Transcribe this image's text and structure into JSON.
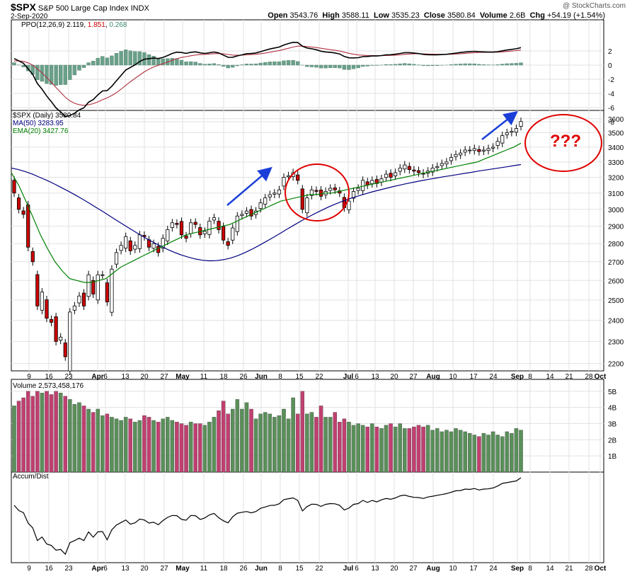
{
  "header": {
    "symbol": "$SPX",
    "name": "S&P 500 Large Cap Index",
    "exchange": "INDX",
    "date": "2-Sep-2020",
    "open_label": "Open",
    "open": "3543.76",
    "high_label": "High",
    "high": "3588.11",
    "low_label": "Low",
    "low": "3535.23",
    "close_label": "Close",
    "close": "3580.84",
    "volume_label": "Volume",
    "volume": "2.6B",
    "chg_label": "Chg",
    "chg": "+54.19 (+1.54%)",
    "credit": "@ StockCharts.com"
  },
  "ppo_legend": {
    "name": "PPO(12,26,9)",
    "v1": "2.119",
    "v2": "1.851",
    "v3": "0.268"
  },
  "price_legend": {
    "name": "$SPX (Daily) 3580.84",
    "ma": "MA(50) 3283.95",
    "ema": "EMA(20) 3427.76"
  },
  "volume_legend": {
    "name": "Volume 2,573,458,176"
  },
  "ad_legend": {
    "name": "Accum/Dist"
  },
  "annotation": {
    "question": "???"
  },
  "colors": {
    "up": "#3f7f3f",
    "down": "#cc0000",
    "ma50": "#000080",
    "ema20": "#008000",
    "annot": "#e00000",
    "arrow": "#1a3fd8",
    "vol_up": "#5a8f5a",
    "vol_down": "#c04070"
  },
  "chart_data": {
    "type": "candlestick",
    "x_ticks": [
      "9",
      "16",
      "23",
      "Apr",
      "6",
      "13",
      "20",
      "27",
      "May",
      "11",
      "18",
      "26",
      "Jun",
      "8",
      "15",
      "22",
      "Jul",
      "6",
      "13",
      "20",
      "27",
      "Aug",
      "10",
      "17",
      "24",
      "Sep",
      "8",
      "14",
      "21",
      "28",
      "Oct"
    ],
    "price_y_ticks": [
      2200,
      2300,
      2400,
      2500,
      2600,
      2700,
      2800,
      2900,
      3000,
      3100,
      3200,
      3300,
      3400,
      3500,
      3600
    ],
    "price_scale": "log",
    "ppo_y_ticks": [
      2,
      0,
      -2,
      -4,
      -6,
      -8
    ],
    "volume_y_ticks": [
      "5B",
      "4B",
      "3B",
      "2B",
      "1B"
    ],
    "closes": [
      3100,
      3000,
      2970,
      2780,
      2700,
      2470,
      2540,
      2410,
      2390,
      2300,
      2320,
      2230,
      2440,
      2470,
      2520,
      2470,
      2630,
      2530,
      2630,
      2630,
      2490,
      2660,
      2750,
      2790,
      2840,
      2760,
      2790,
      2850,
      2840,
      2780,
      2800,
      2750,
      2830,
      2880,
      2920,
      2910,
      2850,
      2830,
      2920,
      2910,
      2850,
      2870,
      2930,
      2950,
      2880,
      2820,
      2790,
      2890,
      2960,
      2970,
      2990,
      2960,
      2990,
      3040,
      3070,
      3090,
      3100,
      3120,
      3200,
      3210,
      3230,
      3180,
      3000,
      3070,
      3120,
      3110,
      3080,
      3110,
      3130,
      3120,
      3100,
      3010,
      3050,
      3110,
      3130,
      3180,
      3150,
      3180,
      3160,
      3190,
      3220,
      3200,
      3230,
      3260,
      3280,
      3250,
      3240,
      3230,
      3220,
      3240,
      3260,
      3270,
      3290,
      3300,
      3330,
      3350,
      3360,
      3380,
      3380,
      3390,
      3370,
      3380,
      3390,
      3400,
      3440,
      3480,
      3500,
      3510,
      3530,
      3580
    ],
    "ma50": [
      3260,
      3250,
      3236,
      3220,
      3200,
      3181,
      3159,
      3136,
      3113,
      3089,
      3064,
      3038,
      3011,
      2985,
      2958,
      2931,
      2905,
      2880,
      2855,
      2831,
      2809,
      2788,
      2769,
      2752,
      2737,
      2725,
      2715,
      2708,
      2705,
      2706,
      2711,
      2720,
      2733,
      2750,
      2769,
      2790,
      2812,
      2835,
      2859,
      2884,
      2908,
      2932,
      2955,
      2977,
      2998,
      3018,
      3036,
      3053,
      3068,
      3082,
      3095,
      3108,
      3119,
      3130,
      3141,
      3151,
      3161,
      3170,
      3179,
      3187,
      3195,
      3203,
      3210,
      3217,
      3225,
      3232,
      3240,
      3247,
      3254,
      3261,
      3268,
      3276,
      3283
    ],
    "ema20": [
      3230,
      3150,
      3050,
      2950,
      2850,
      2770,
      2700,
      2650,
      2610,
      2600,
      2590,
      2590,
      2600,
      2610,
      2640,
      2670,
      2690,
      2710,
      2730,
      2750,
      2770,
      2790,
      2810,
      2830,
      2850,
      2860,
      2870,
      2880,
      2890,
      2900,
      2910,
      2930,
      2950,
      2970,
      2990,
      3010,
      3030,
      3050,
      3060,
      3070,
      3080,
      3090,
      3090,
      3100,
      3100,
      3110,
      3120,
      3130,
      3140,
      3150,
      3160,
      3170,
      3180,
      3190,
      3200,
      3210,
      3220,
      3230,
      3240,
      3250,
      3260,
      3270,
      3280,
      3290,
      3300,
      3320,
      3340,
      3360,
      3380,
      3400,
      3427
    ],
    "volume_billions": [
      4.1,
      4.4,
      4.6,
      5.0,
      4.7,
      5.0,
      4.9,
      5.0,
      4.8,
      5.0,
      4.9,
      4.7,
      4.5,
      4.2,
      4.3,
      4.1,
      3.9,
      3.7,
      3.9,
      3.5,
      3.6,
      3.4,
      3.3,
      3.2,
      3.4,
      3.3,
      3.1,
      3.2,
      3.5,
      3.4,
      3.2,
      3.1,
      3.3,
      3.4,
      3.2,
      3.1,
      3.0,
      2.9,
      3.1,
      3.0,
      3.0,
      2.9,
      3.1,
      3.4,
      3.8,
      4.4,
      3.6,
      3.9,
      4.5,
      3.9,
      4.3,
      3.9,
      3.3,
      3.6,
      3.7,
      3.6,
      3.4,
      3.5,
      3.9,
      3.3,
      4.6,
      3.6,
      5.0,
      3.6,
      3.7,
      3.4,
      4.1,
      3.4,
      3.4,
      3.7,
      3.1,
      3.3,
      3.1,
      2.9,
      3.0,
      2.9,
      2.8,
      3.0,
      2.8,
      2.7,
      2.9,
      3.0,
      2.8,
      3.0,
      2.7,
      2.7,
      2.8,
      2.9,
      2.8,
      2.9,
      2.6,
      2.7,
      2.5,
      2.6,
      2.5,
      2.7,
      2.6,
      2.5,
      2.4,
      2.3,
      2.2,
      2.4,
      2.3,
      2.5,
      2.3,
      2.2,
      2.5,
      2.4,
      2.7,
      2.6
    ]
  }
}
